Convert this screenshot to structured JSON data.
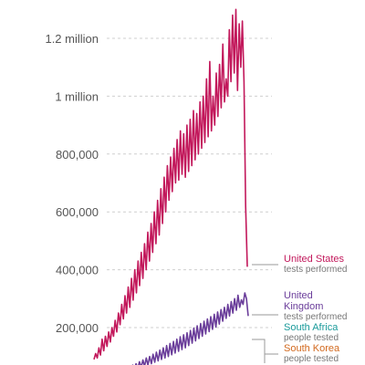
{
  "chart_data": {
    "type": "line",
    "ylim": [
      0,
      1350000
    ],
    "grid": true,
    "legend_placement": "right, inline labels",
    "y_ticks": [
      {
        "value": 200000,
        "label": "200,000"
      },
      {
        "value": 400000,
        "label": "400,000"
      },
      {
        "value": 600000,
        "label": "600,000"
      },
      {
        "value": 800000,
        "label": "800,000"
      },
      {
        "value": 1000000,
        "label": "1 million"
      },
      {
        "value": 1200000,
        "label": "1.2 million"
      }
    ],
    "series": [
      {
        "key": "us",
        "label_lines": [
          "United States"
        ],
        "sublabel": "tests performed",
        "color": "#c2185b",
        "values": [
          90000,
          110000,
          95000,
          130000,
          105000,
          160000,
          120000,
          170000,
          135000,
          185000,
          150000,
          200000,
          170000,
          225000,
          185000,
          250000,
          210000,
          280000,
          230000,
          310000,
          250000,
          340000,
          270000,
          370000,
          295000,
          400000,
          320000,
          430000,
          345000,
          460000,
          370000,
          490000,
          400000,
          530000,
          430000,
          560000,
          460000,
          600000,
          490000,
          640000,
          520000,
          680000,
          560000,
          720000,
          600000,
          760000,
          640000,
          790000,
          670000,
          820000,
          700000,
          850000,
          710000,
          880000,
          730000,
          870000,
          720000,
          900000,
          740000,
          920000,
          760000,
          950000,
          780000,
          940000,
          800000,
          980000,
          820000,
          1000000,
          840000,
          1060000,
          860000,
          1120000,
          880000,
          1000000,
          900000,
          1080000,
          930000,
          1110000,
          960000,
          1180000,
          980000,
          1060000,
          1000000,
          1230000,
          1050000,
          1280000,
          1080000,
          1300000,
          1020000,
          1250000,
          1100000,
          1260000,
          1050000,
          620000,
          410000
        ]
      },
      {
        "key": "uk",
        "label_lines": [
          "United",
          "Kingdom"
        ],
        "sublabel": "tests performed",
        "color": "#6a3d9a",
        "values": [
          20000,
          25000,
          22000,
          30000,
          26000,
          35000,
          29000,
          40000,
          32000,
          45000,
          35000,
          50000,
          38000,
          55000,
          42000,
          60000,
          45000,
          65000,
          50000,
          70000,
          54000,
          75000,
          58000,
          82000,
          62000,
          88000,
          66000,
          95000,
          70000,
          100000,
          75000,
          108000,
          80000,
          115000,
          85000,
          122000,
          90000,
          130000,
          95000,
          138000,
          100000,
          145000,
          106000,
          152000,
          112000,
          160000,
          118000,
          168000,
          124000,
          175000,
          130000,
          182000,
          138000,
          190000,
          146000,
          198000,
          154000,
          206000,
          162000,
          214000,
          170000,
          222000,
          178000,
          230000,
          186000,
          238000,
          194000,
          246000,
          202000,
          254000,
          212000,
          262000,
          222000,
          270000,
          232000,
          280000,
          240000,
          290000,
          250000,
          300000,
          260000,
          312000,
          270000,
          296000,
          280000,
          320000,
          300000,
          240000
        ]
      },
      {
        "key": "za",
        "label_lines": [
          "South Africa"
        ],
        "sublabel": "people tested",
        "color": "#1a9a9a"
      },
      {
        "key": "kr",
        "label_lines": [
          "South Korea"
        ],
        "sublabel": "people tested",
        "color": "#d2691e"
      }
    ]
  }
}
